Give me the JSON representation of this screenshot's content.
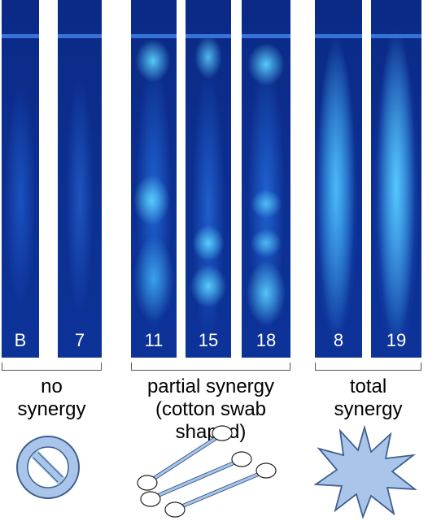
{
  "lanes": [
    {
      "id": "B",
      "label": "B"
    },
    {
      "id": "7",
      "label": "7"
    },
    {
      "id": "11",
      "label": "11"
    },
    {
      "id": "15",
      "label": "15"
    },
    {
      "id": "18",
      "label": "18"
    },
    {
      "id": "8",
      "label": "8"
    },
    {
      "id": "19",
      "label": "19"
    }
  ],
  "groups": [
    {
      "line1": "no",
      "line2": "synergy"
    },
    {
      "line1": "partial synergy",
      "line2": "(cotton swab shaped)"
    },
    {
      "line1": "total",
      "line2": "synergy"
    }
  ],
  "colors": {
    "plate_background": "#0b2a86",
    "fluorescence": "#49c8ff",
    "icon_fill": "#a9c6ea",
    "icon_stroke": "#3f5f8f"
  },
  "icons": [
    "no-entry-sign-icon",
    "cotton-swabs-icon",
    "starburst-icon"
  ]
}
